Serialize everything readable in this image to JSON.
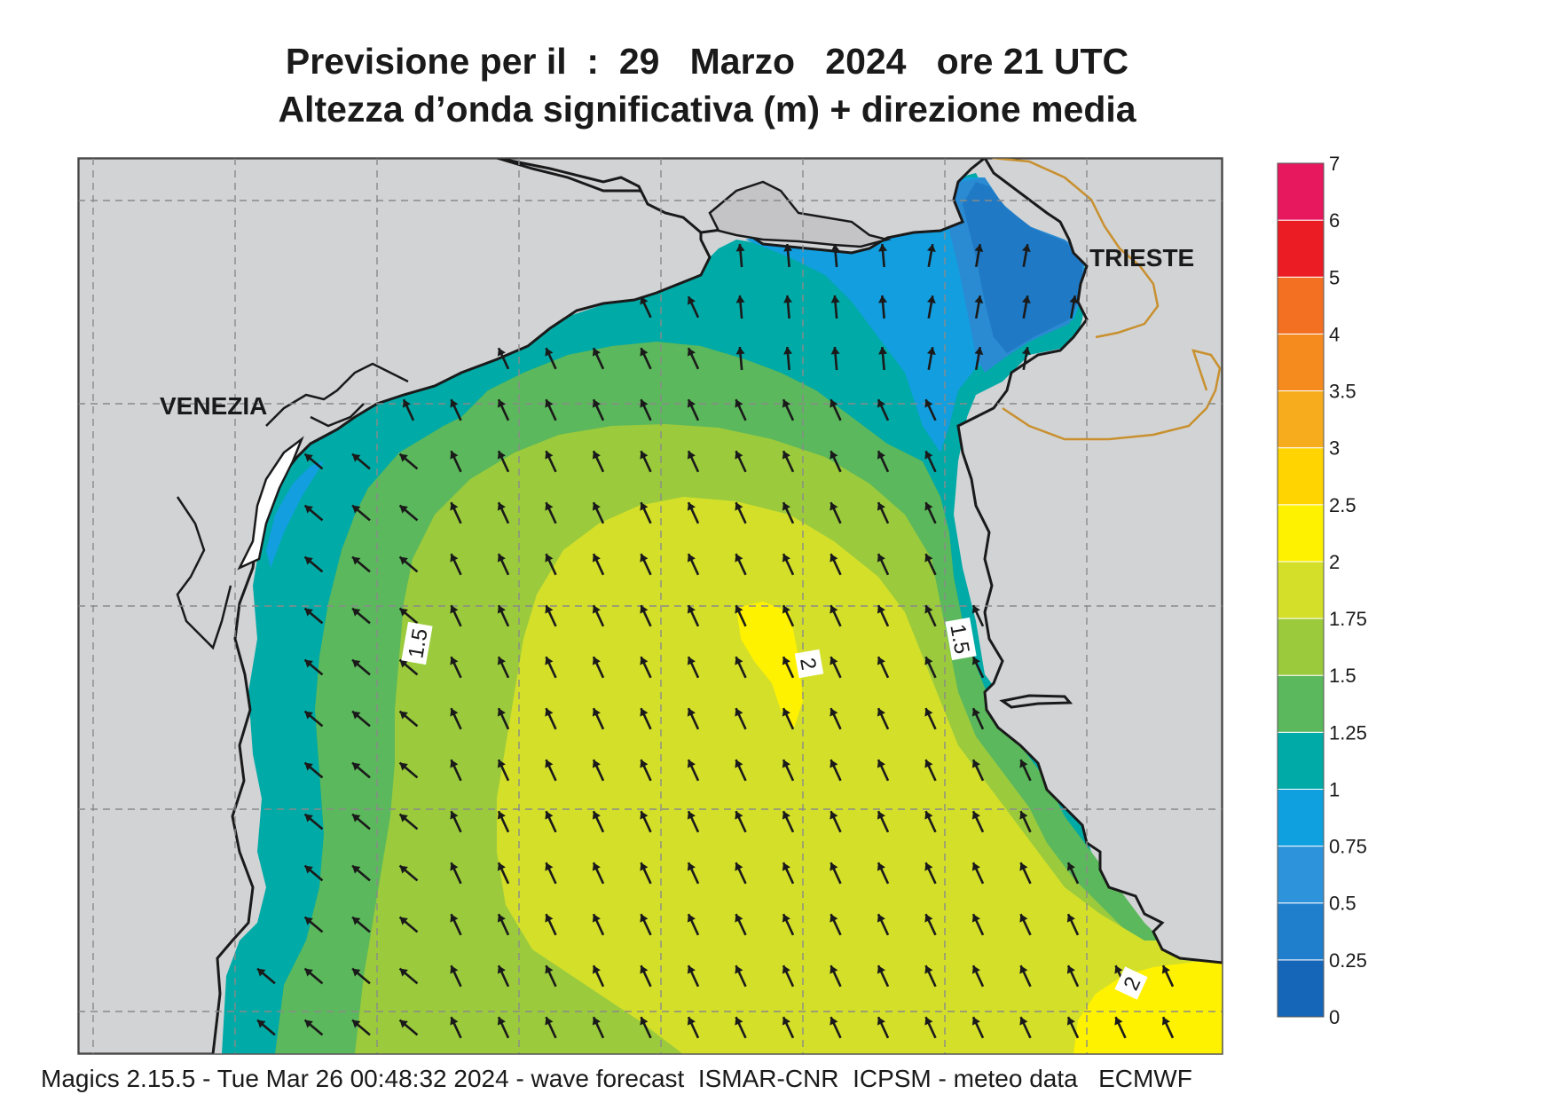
{
  "title": {
    "line1": "Previsione per il  :  29   Marzo   2024   ore 21 UTC",
    "line2": "Altezza d’onda significativa (m) + direzione media"
  },
  "places": {
    "venezia": "VENEZIA",
    "trieste": "TRIESTE"
  },
  "contour_labels": {
    "west": "1.5",
    "east": "1.5",
    "center": "2",
    "south": "2"
  },
  "legend": {
    "levels": [
      "0",
      "0.25",
      "0.5",
      "0.75",
      "1",
      "1.25",
      "1.5",
      "1.75",
      "2",
      "2.5",
      "3",
      "3.5",
      "4",
      "5",
      "6",
      "7"
    ],
    "colors": [
      "#1565b8",
      "#1f7fcc",
      "#2d94dc",
      "#0fa0e0",
      "#00aaa6",
      "#5cb85c",
      "#9bcb3c",
      "#d4df2a",
      "#fff200",
      "#ffd400",
      "#f7ac1e",
      "#f58a1f",
      "#f36f21",
      "#ec1c24",
      "#e8185f"
    ]
  },
  "colors": {
    "land": "#d2d3d5",
    "coast": "#1a1a1a",
    "border": "#c8902e",
    "arrow": "#1a1a1a"
  },
  "wave_direction": "north-west",
  "footer": "Magics 2.15.5 - Tue Mar 26 00:48:32 2024 - wave forecast  ISMAR-CNR  ICPSM - meteo data   ECMWF"
}
